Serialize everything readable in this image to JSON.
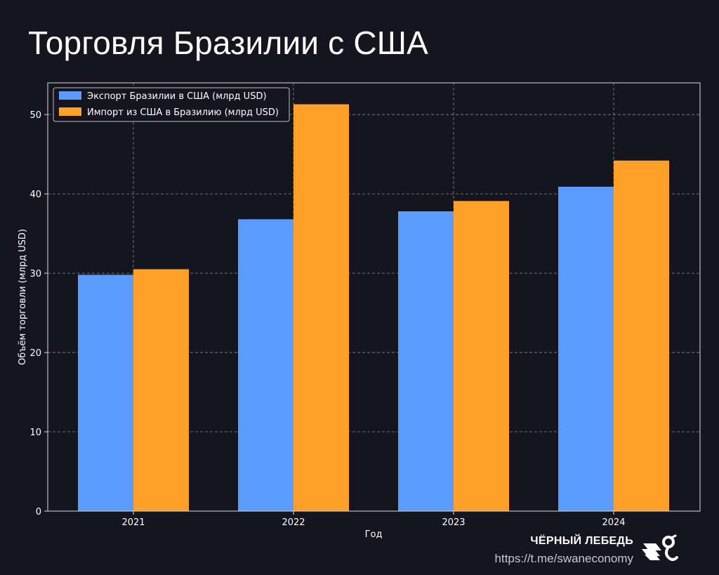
{
  "page": {
    "title": "Торговля Бразилии с США",
    "brand_name": "ЧЁРНЫЙ ЛЕБЕДЬ",
    "brand_link": "https://t.me/swaneconomy"
  },
  "colors": {
    "background": "#15151f",
    "export": "#5b9bff",
    "import": "#ffa028",
    "axis": "#d9d9d9",
    "grid": "#8a8a8a"
  },
  "chart_data": {
    "type": "bar",
    "title": "",
    "xlabel": "Год",
    "ylabel": "Объём торговли (млрд USD)",
    "categories": [
      "2021",
      "2022",
      "2023",
      "2024"
    ],
    "series": [
      {
        "name": "Экспорт Бразилии в США (млрд USD)",
        "values": [
          29.8,
          36.8,
          37.8,
          40.9
        ]
      },
      {
        "name": "Импорт из США в Бразилию (млрд USD)",
        "values": [
          30.5,
          51.3,
          39.1,
          44.2
        ]
      }
    ],
    "yticks": [
      0,
      10,
      20,
      30,
      40,
      50
    ],
    "ylim": [
      0,
      54
    ],
    "grid": true,
    "legend_position": "top-left"
  }
}
